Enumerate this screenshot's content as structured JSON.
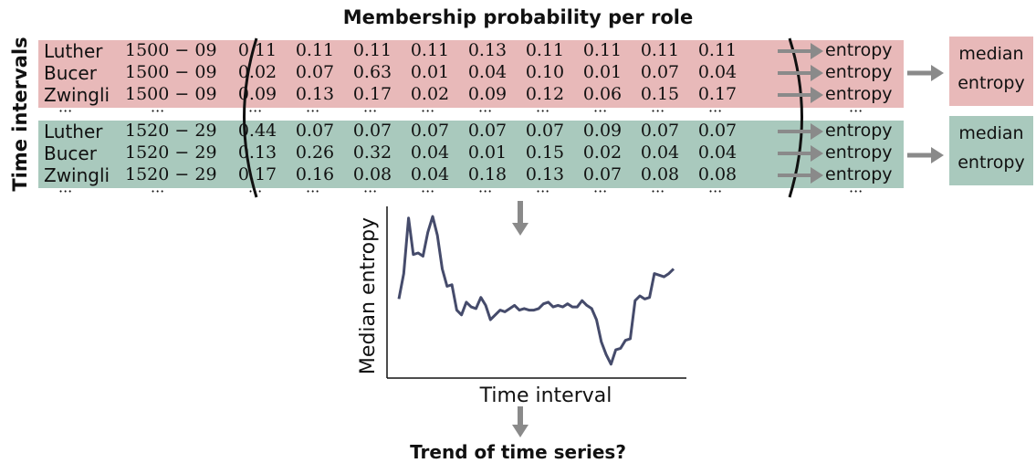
{
  "title": "Membership probability per role",
  "side_label": "Time intervals",
  "ellipsis": "···",
  "entropy_label": "entropy",
  "median_box": [
    "median",
    "entropy"
  ],
  "groups": [
    {
      "color": "#e8b9b9",
      "rows": [
        {
          "name": "Luther",
          "period": "1500 − 09",
          "values": [
            "0.11",
            "0.11",
            "0.11",
            "0.11",
            "0.13",
            "0.11",
            "0.11",
            "0.11",
            "0.11"
          ]
        },
        {
          "name": "Bucer",
          "period": "1500 − 09",
          "values": [
            "0.02",
            "0.07",
            "0.63",
            "0.01",
            "0.04",
            "0.10",
            "0.01",
            "0.07",
            "0.04"
          ]
        },
        {
          "name": "Zwingli",
          "period": "1500 − 09",
          "values": [
            "0.09",
            "0.13",
            "0.17",
            "0.02",
            "0.09",
            "0.12",
            "0.06",
            "0.15",
            "0.17"
          ]
        }
      ]
    },
    {
      "color": "#a9c9bd",
      "rows": [
        {
          "name": "Luther",
          "period": "1520 − 29",
          "values": [
            "0.44",
            "0.07",
            "0.07",
            "0.07",
            "0.07",
            "0.07",
            "0.09",
            "0.07",
            "0.07"
          ]
        },
        {
          "name": "Bucer",
          "period": "1520 − 29",
          "values": [
            "0.13",
            "0.26",
            "0.32",
            "0.04",
            "0.01",
            "0.15",
            "0.02",
            "0.04",
            "0.04"
          ]
        },
        {
          "name": "Zwingli",
          "period": "1520 − 29",
          "values": [
            "0.17",
            "0.16",
            "0.08",
            "0.04",
            "0.18",
            "0.13",
            "0.07",
            "0.08",
            "0.08"
          ]
        }
      ]
    }
  ],
  "chart_data": {
    "type": "line",
    "xlabel": "Time interval",
    "ylabel": "Median entropy",
    "grid": false,
    "series": [
      {
        "color": "#454b6b",
        "values": [
          0.44,
          0.6,
          0.95,
          0.72,
          0.73,
          0.71,
          0.86,
          0.96,
          0.84,
          0.63,
          0.52,
          0.53,
          0.37,
          0.34,
          0.42,
          0.39,
          0.38,
          0.45,
          0.4,
          0.31,
          0.34,
          0.37,
          0.36,
          0.38,
          0.4,
          0.37,
          0.38,
          0.37,
          0.37,
          0.38,
          0.41,
          0.42,
          0.39,
          0.4,
          0.39,
          0.41,
          0.39,
          0.39,
          0.43,
          0.4,
          0.38,
          0.31,
          0.17,
          0.09,
          0.03,
          0.12,
          0.13,
          0.18,
          0.19,
          0.43,
          0.46,
          0.44,
          0.45,
          0.6,
          0.59,
          0.58,
          0.6,
          0.63
        ]
      }
    ]
  },
  "question": "Trend of time series?"
}
